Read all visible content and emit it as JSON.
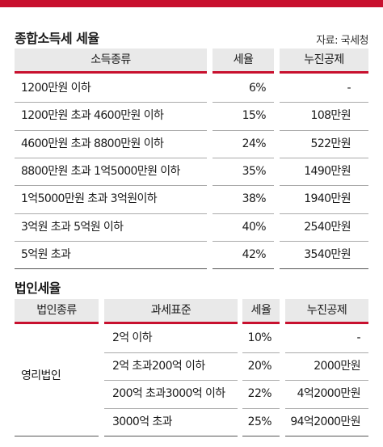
{
  "income_tax": {
    "title": "종합소득세 세율",
    "source": "자료: 국세청",
    "headers": [
      "소득종류",
      "세율",
      "누진공제"
    ],
    "rows": [
      [
        "1200만원 이하",
        "6%",
        "-"
      ],
      [
        "1200만원 초과 4600만원 이하",
        "15%",
        "108만원"
      ],
      [
        "4600만원 초과 8800만원 이하",
        "24%",
        "522만원"
      ],
      [
        "8800만원 초과 1억5000만원 이하",
        "35%",
        "1490만원"
      ],
      [
        "1억5000만원 초과 3억원이하",
        "38%",
        "1940만원"
      ],
      [
        "3억원 초과 5억원 이하",
        "40%",
        "2540만원"
      ],
      [
        "5억원 초과",
        "42%",
        "3540만원"
      ]
    ]
  },
  "corporate_tax": {
    "title": "법인세율",
    "headers": [
      "법인종류",
      "과세표준",
      "세율",
      "누진공제"
    ],
    "category": "영리법인",
    "rows": [
      [
        "2억 이하",
        "10%",
        "-"
      ],
      [
        "2억 초과200억 이하",
        "20%",
        "2000만원"
      ],
      [
        "200억 초과3000억 이하",
        "22%",
        "4억2000만원"
      ],
      [
        "3000억 초과",
        "25%",
        "94억2000만원"
      ]
    ]
  }
}
